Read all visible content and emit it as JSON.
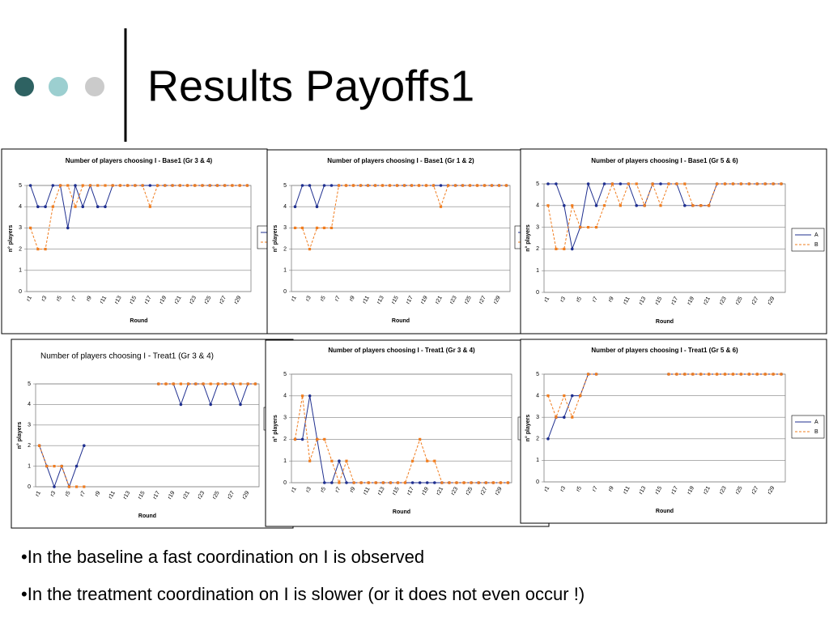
{
  "slide": {
    "title": "Results Payoffs1",
    "bullets": [
      "•In the baseline a fast coordination on I is observed",
      "•In the treatment coordination on I is slower (or it does not even occur !)"
    ]
  },
  "chart_data": [
    {
      "type": "line",
      "title": "Number of players choosing I - Base1 (Gr 3 & 4)",
      "x_label": "Round",
      "y_label": "n° players",
      "categories": [
        "r1",
        null,
        "r3",
        null,
        "r5",
        null,
        "r7",
        null,
        "r9",
        null,
        "r11",
        null,
        "r13",
        null,
        "r15",
        null,
        "r17",
        null,
        "r19",
        null,
        "r21",
        null,
        "r23",
        null,
        "r25",
        null,
        "r27",
        null,
        "r29",
        null
      ],
      "series": [
        {
          "name": "A",
          "color": "#1f2f8f",
          "values": [
            5,
            4,
            4,
            5,
            5,
            3,
            5,
            4,
            5,
            4,
            4,
            5,
            5,
            5,
            5,
            5,
            5,
            5,
            5,
            5,
            5,
            5,
            5,
            5,
            5,
            5,
            5,
            5,
            5,
            5
          ]
        },
        {
          "name": "B",
          "color": "#f07c1e",
          "values": [
            3,
            2,
            2,
            4,
            5,
            5,
            4,
            5,
            5,
            5,
            5,
            5,
            5,
            5,
            5,
            5,
            4,
            5,
            5,
            5,
            5,
            5,
            5,
            5,
            5,
            5,
            5,
            5,
            5,
            5
          ]
        }
      ],
      "ylim": [
        0,
        5
      ],
      "yticks": [
        0,
        1,
        2,
        3,
        4,
        5
      ],
      "grid": true
    },
    {
      "type": "line",
      "title": "Number of players choosing I - Base1 (Gr 1 & 2)",
      "x_label": "Round",
      "y_label": "n° players",
      "categories": [
        "r1",
        null,
        "r3",
        null,
        "r5",
        null,
        "r7",
        null,
        "r9",
        null,
        "r11",
        null,
        "r13",
        null,
        "r15",
        null,
        "r17",
        null,
        "r19",
        null,
        "r21",
        null,
        "r23",
        null,
        "r25",
        null,
        "r27",
        null,
        "r29",
        null
      ],
      "series": [
        {
          "name": "A",
          "color": "#1f2f8f",
          "values": [
            4,
            5,
            5,
            4,
            5,
            5,
            5,
            5,
            5,
            5,
            5,
            5,
            5,
            5,
            5,
            5,
            5,
            5,
            5,
            5,
            5,
            5,
            5,
            5,
            5,
            5,
            5,
            5,
            5,
            5
          ]
        },
        {
          "name": "B",
          "color": "#f07c1e",
          "values": [
            3,
            3,
            2,
            3,
            3,
            3,
            5,
            5,
            5,
            5,
            5,
            5,
            5,
            5,
            5,
            5,
            5,
            5,
            5,
            5,
            4,
            5,
            5,
            5,
            5,
            5,
            5,
            5,
            5,
            5
          ]
        }
      ],
      "ylim": [
        0,
        5
      ],
      "yticks": [
        0,
        1,
        2,
        3,
        4,
        5
      ],
      "grid": true
    },
    {
      "type": "line",
      "title": "Number of players choosing I - Base1 (Gr 5 & 6)",
      "x_label": "Round",
      "y_label": "n° players",
      "categories": [
        "r1",
        null,
        "r3",
        null,
        "r5",
        null,
        "r7",
        null,
        "r9",
        null,
        "r11",
        null,
        "r13",
        null,
        "r15",
        null,
        "r17",
        null,
        "r19",
        null,
        "r21",
        null,
        "r23",
        null,
        "r25",
        null,
        "r27",
        null,
        "r29",
        null
      ],
      "series": [
        {
          "name": "A",
          "color": "#1f2f8f",
          "values": [
            5,
            5,
            4,
            2,
            3,
            5,
            4,
            5,
            5,
            5,
            5,
            4,
            4,
            5,
            5,
            5,
            5,
            4,
            4,
            4,
            4,
            5,
            5,
            5,
            5,
            5,
            5,
            5,
            5,
            5
          ]
        },
        {
          "name": "B",
          "color": "#f07c1e",
          "values": [
            4,
            2,
            2,
            4,
            3,
            3,
            3,
            4,
            5,
            4,
            5,
            5,
            4,
            5,
            4,
            5,
            5,
            5,
            4,
            4,
            4,
            5,
            5,
            5,
            5,
            5,
            5,
            5,
            5,
            5
          ]
        }
      ],
      "ylim": [
        0,
        5
      ],
      "yticks": [
        0,
        1,
        2,
        3,
        4,
        5
      ],
      "grid": true
    },
    {
      "type": "line",
      "title": "Number of players choosing I - Treat1 (Gr 3 & 4)",
      "x_label": "Round",
      "y_label": "n° players",
      "categories": [
        "r1",
        null,
        "r3",
        null,
        "r5",
        null,
        "r7",
        null,
        "r9",
        null,
        "r11",
        null,
        "r13",
        null,
        "r15",
        null,
        "r17",
        null,
        "r19",
        null,
        "r21",
        null,
        "r23",
        null,
        "r25",
        null,
        "r27",
        null,
        "r29",
        null
      ],
      "series": [
        {
          "name": "A",
          "color": "#1f2f8f",
          "values": [
            2,
            1,
            0,
            1,
            0,
            1,
            2,
            null,
            null,
            null,
            null,
            null,
            null,
            null,
            null,
            null,
            5,
            5,
            5,
            4,
            5,
            5,
            5,
            4,
            5,
            5,
            5,
            4,
            5,
            5
          ]
        },
        {
          "name": "B",
          "color": "#f07c1e",
          "values": [
            2,
            1,
            1,
            1,
            0,
            0,
            0,
            null,
            null,
            null,
            null,
            null,
            null,
            null,
            null,
            null,
            5,
            5,
            5,
            5,
            5,
            5,
            5,
            5,
            5,
            5,
            5,
            5,
            5,
            5
          ]
        }
      ],
      "ylim": [
        0,
        5
      ],
      "yticks": [
        0,
        1,
        2,
        3,
        4,
        5
      ],
      "grid": true
    },
    {
      "type": "line",
      "title": "Number of players choosing I - Treat1 (Gr 3 & 4)",
      "x_label": "Round",
      "y_label": "n° players",
      "categories": [
        "r1",
        null,
        "r3",
        null,
        "r5",
        null,
        "r7",
        null,
        "r9",
        null,
        "r11",
        null,
        "r13",
        null,
        "r15",
        null,
        "r17",
        null,
        "r19",
        null,
        "r21",
        null,
        "r23",
        null,
        "r25",
        null,
        "r27",
        null,
        "r29",
        null
      ],
      "series": [
        {
          "name": "A",
          "color": "#1f2f8f",
          "values": [
            2,
            2,
            4,
            2,
            0,
            0,
            1,
            0,
            0,
            0,
            0,
            0,
            0,
            0,
            0,
            0,
            0,
            0,
            0,
            0,
            0,
            0,
            0,
            0,
            0,
            0,
            0,
            0,
            0,
            0
          ]
        },
        {
          "name": "B",
          "color": "#f07c1e",
          "values": [
            2,
            4,
            1,
            2,
            2,
            1,
            0,
            1,
            0,
            0,
            0,
            0,
            0,
            0,
            0,
            0,
            1,
            2,
            1,
            1,
            0,
            0,
            0,
            0,
            0,
            0,
            0,
            0,
            0,
            0
          ]
        }
      ],
      "ylim": [
        0,
        5
      ],
      "yticks": [
        0,
        1,
        2,
        3,
        4,
        5
      ],
      "grid": true
    },
    {
      "type": "line",
      "title": "Number of players choosing I - Treat1 (Gr 5 & 6)",
      "x_label": "Round",
      "y_label": "n° players",
      "categories": [
        "r1",
        null,
        "r3",
        null,
        "r5",
        null,
        "r7",
        null,
        "r9",
        null,
        "r11",
        null,
        "r13",
        null,
        "r15",
        null,
        "r17",
        null,
        "r19",
        null,
        "r21",
        null,
        "r23",
        null,
        "r25",
        null,
        "r27",
        null,
        "r29",
        null
      ],
      "series": [
        {
          "name": "A",
          "color": "#1f2f8f",
          "values": [
            2,
            3,
            3,
            4,
            4,
            5,
            5,
            null,
            null,
            null,
            null,
            null,
            null,
            null,
            null,
            5,
            5,
            5,
            5,
            5,
            5,
            5,
            5,
            5,
            5,
            5,
            5,
            5,
            5,
            5
          ]
        },
        {
          "name": "B",
          "color": "#f07c1e",
          "values": [
            4,
            3,
            4,
            3,
            4,
            5,
            5,
            null,
            null,
            null,
            null,
            null,
            null,
            null,
            null,
            5,
            5,
            5,
            5,
            5,
            5,
            5,
            5,
            5,
            5,
            5,
            5,
            5,
            5,
            5
          ]
        }
      ],
      "ylim": [
        0,
        5
      ],
      "yticks": [
        0,
        1,
        2,
        3,
        4,
        5
      ],
      "grid": true
    }
  ]
}
